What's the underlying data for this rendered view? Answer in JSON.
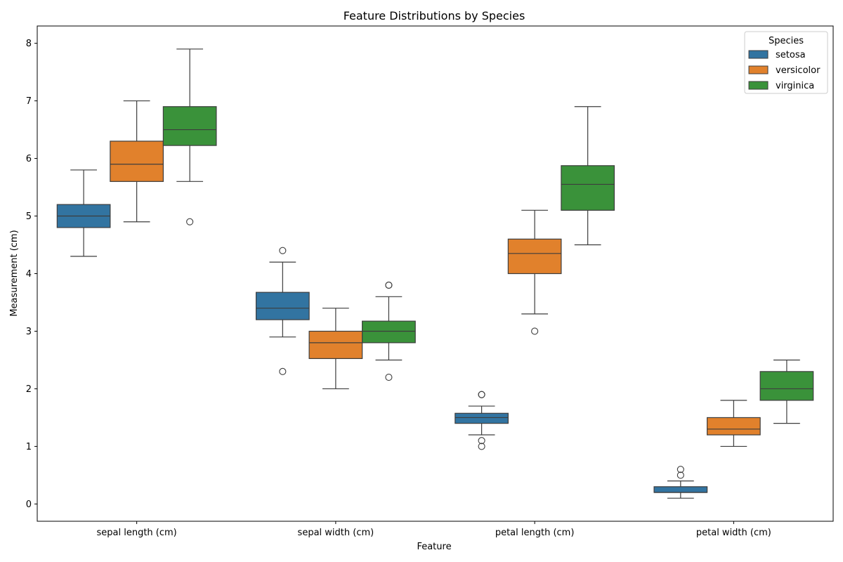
{
  "chart_data": {
    "type": "box",
    "title": "Feature Distributions by Species",
    "xlabel": "Feature",
    "ylabel": "Measurement (cm)",
    "ylim": [
      -0.3,
      8.3
    ],
    "yticks": [
      0,
      1,
      2,
      3,
      4,
      5,
      6,
      7,
      8
    ],
    "categories": [
      "sepal length (cm)",
      "sepal width (cm)",
      "petal length (cm)",
      "petal width (cm)"
    ],
    "legend": {
      "title": "Species",
      "placement": "top-right"
    },
    "grid": false,
    "series": [
      {
        "name": "setosa",
        "color": "#3274a1",
        "boxes": [
          {
            "whisker_low": 4.3,
            "q1": 4.8,
            "median": 5.0,
            "q3": 5.2,
            "whisker_high": 5.8,
            "outliers": []
          },
          {
            "whisker_low": 2.9,
            "q1": 3.2,
            "median": 3.4,
            "q3": 3.675,
            "whisker_high": 4.2,
            "outliers": [
              4.4,
              2.3
            ]
          },
          {
            "whisker_low": 1.2,
            "q1": 1.4,
            "median": 1.5,
            "q3": 1.575,
            "whisker_high": 1.7,
            "outliers": [
              1.9,
              1.9,
              1.1,
              1.0
            ]
          },
          {
            "whisker_low": 0.1,
            "q1": 0.2,
            "median": 0.2,
            "q3": 0.3,
            "whisker_high": 0.4,
            "outliers": [
              0.6,
              0.5
            ]
          }
        ]
      },
      {
        "name": "versicolor",
        "color": "#e1812c",
        "boxes": [
          {
            "whisker_low": 4.9,
            "q1": 5.6,
            "median": 5.9,
            "q3": 6.3,
            "whisker_high": 7.0,
            "outliers": []
          },
          {
            "whisker_low": 2.0,
            "q1": 2.525,
            "median": 2.8,
            "q3": 3.0,
            "whisker_high": 3.4,
            "outliers": []
          },
          {
            "whisker_low": 3.3,
            "q1": 4.0,
            "median": 4.35,
            "q3": 4.6,
            "whisker_high": 5.1,
            "outliers": [
              3.0
            ]
          },
          {
            "whisker_low": 1.0,
            "q1": 1.2,
            "median": 1.3,
            "q3": 1.5,
            "whisker_high": 1.8,
            "outliers": []
          }
        ]
      },
      {
        "name": "virginica",
        "color": "#3a923a",
        "boxes": [
          {
            "whisker_low": 5.6,
            "q1": 6.225,
            "median": 6.5,
            "q3": 6.9,
            "whisker_high": 7.9,
            "outliers": [
              4.9
            ]
          },
          {
            "whisker_low": 2.5,
            "q1": 2.8,
            "median": 3.0,
            "q3": 3.175,
            "whisker_high": 3.6,
            "outliers": [
              3.8,
              3.8,
              2.2
            ]
          },
          {
            "whisker_low": 4.5,
            "q1": 5.1,
            "median": 5.55,
            "q3": 5.875,
            "whisker_high": 6.9,
            "outliers": []
          },
          {
            "whisker_low": 1.4,
            "q1": 1.8,
            "median": 2.0,
            "q3": 2.3,
            "whisker_high": 2.5,
            "outliers": []
          }
        ]
      }
    ]
  }
}
